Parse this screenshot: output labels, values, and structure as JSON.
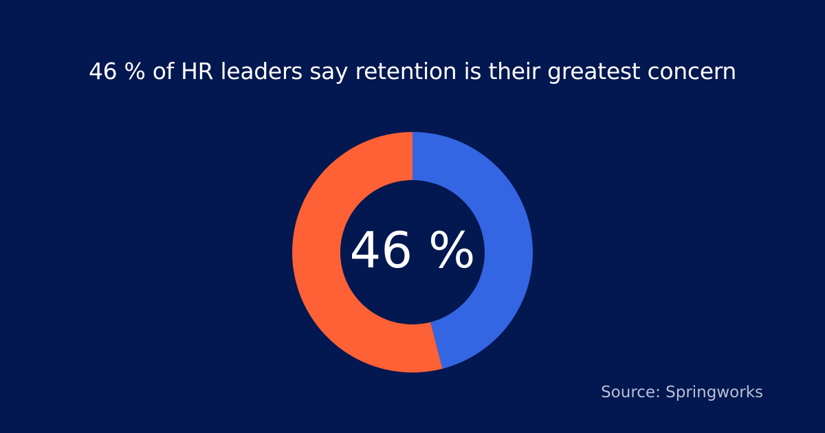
{
  "header": {
    "title": "46 % of HR leaders say retention is their greatest concern"
  },
  "chart_data": {
    "type": "pie",
    "categories": [
      "",
      ""
    ],
    "values": [
      46,
      54
    ],
    "colors": [
      "#3466E3",
      "#FE6135"
    ],
    "center_label": "46 %",
    "start_angle_deg": 0,
    "direction": "clockwise",
    "donut": true
  },
  "footer": {
    "source": "Source: Springworks"
  },
  "colors": {
    "background": "#031750",
    "text": "#FFFFFF",
    "muted_text": "#B9BFD6"
  }
}
